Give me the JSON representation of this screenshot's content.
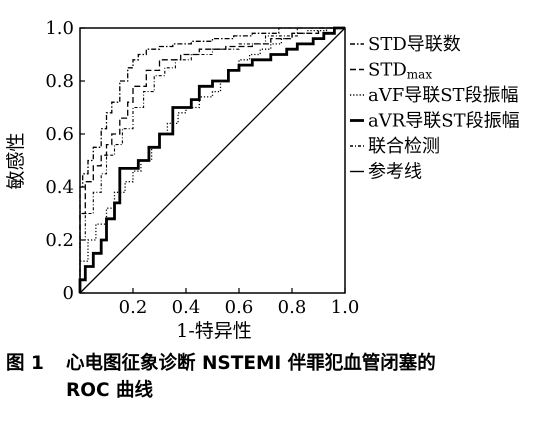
{
  "chart_data": {
    "type": "line",
    "title": "",
    "xlabel": "1-特异性",
    "ylabel": "敏感性",
    "xlim": [
      0,
      1
    ],
    "ylim": [
      0,
      1
    ],
    "x_ticks": [
      "0",
      "0.2",
      "0.4",
      "0.6",
      "0.8",
      "1.0"
    ],
    "y_ticks": [
      "0",
      "0.2",
      "0.4",
      "0.6",
      "0.8",
      "1.0"
    ],
    "grid": false,
    "legend_position": "right",
    "series": [
      {
        "name": "STD导联数",
        "style": "dash-dot",
        "x": [
          0,
          0,
          0.01,
          0.01,
          0.03,
          0.03,
          0.05,
          0.05,
          0.08,
          0.08,
          0.1,
          0.1,
          0.12,
          0.12,
          0.15,
          0.15,
          0.18,
          0.18,
          0.2,
          0.2,
          0.22,
          0.22,
          0.25,
          0.25,
          0.3,
          0.3,
          0.35,
          0.35,
          0.42,
          0.42,
          0.5,
          0.5,
          0.58,
          0.58,
          0.65,
          0.65,
          0.75,
          0.75,
          1.0
        ],
        "y": [
          0,
          0.4,
          0.4,
          0.45,
          0.45,
          0.5,
          0.5,
          0.55,
          0.55,
          0.62,
          0.62,
          0.68,
          0.68,
          0.72,
          0.72,
          0.8,
          0.8,
          0.85,
          0.85,
          0.88,
          0.88,
          0.9,
          0.9,
          0.92,
          0.92,
          0.93,
          0.93,
          0.94,
          0.94,
          0.95,
          0.95,
          0.96,
          0.96,
          0.97,
          0.97,
          0.98,
          0.98,
          1.0,
          1.0
        ]
      },
      {
        "name": "STDmax",
        "style": "dashed",
        "x": [
          0,
          0,
          0.02,
          0.02,
          0.05,
          0.05,
          0.08,
          0.08,
          0.1,
          0.1,
          0.12,
          0.12,
          0.15,
          0.15,
          0.18,
          0.18,
          0.2,
          0.2,
          0.25,
          0.25,
          0.3,
          0.3,
          0.38,
          0.38,
          0.45,
          0.45,
          0.55,
          0.55,
          0.65,
          0.65,
          0.72,
          0.72,
          0.8,
          0.8,
          0.9,
          0.9,
          1.0
        ],
        "y": [
          0,
          0.3,
          0.3,
          0.42,
          0.42,
          0.48,
          0.48,
          0.52,
          0.52,
          0.56,
          0.56,
          0.6,
          0.6,
          0.66,
          0.66,
          0.72,
          0.72,
          0.78,
          0.78,
          0.84,
          0.84,
          0.88,
          0.88,
          0.9,
          0.9,
          0.92,
          0.92,
          0.93,
          0.93,
          0.94,
          0.94,
          0.96,
          0.96,
          0.98,
          0.98,
          1.0,
          1.0
        ]
      },
      {
        "name": "aVF导联ST段振幅",
        "style": "dotted",
        "x": [
          0,
          0,
          0.03,
          0.03,
          0.06,
          0.06,
          0.1,
          0.1,
          0.13,
          0.13,
          0.17,
          0.17,
          0.2,
          0.2,
          0.23,
          0.23,
          0.27,
          0.27,
          0.3,
          0.3,
          0.33,
          0.33,
          0.37,
          0.37,
          0.4,
          0.4,
          0.45,
          0.45,
          0.5,
          0.5,
          0.53,
          0.53,
          0.56,
          0.56,
          0.6,
          0.6,
          0.64,
          0.64,
          0.68,
          0.68,
          0.72,
          0.72,
          0.76,
          0.76,
          0.8,
          0.8,
          0.86,
          0.86,
          0.93,
          0.93,
          1.0
        ],
        "y": [
          0,
          0.12,
          0.12,
          0.2,
          0.2,
          0.26,
          0.26,
          0.32,
          0.32,
          0.38,
          0.38,
          0.42,
          0.42,
          0.46,
          0.46,
          0.5,
          0.5,
          0.55,
          0.55,
          0.6,
          0.6,
          0.64,
          0.64,
          0.68,
          0.68,
          0.7,
          0.7,
          0.74,
          0.74,
          0.76,
          0.76,
          0.8,
          0.8,
          0.84,
          0.84,
          0.88,
          0.88,
          0.9,
          0.9,
          0.92,
          0.92,
          0.94,
          0.94,
          0.96,
          0.96,
          0.98,
          0.98,
          0.99,
          0.99,
          1.0,
          1.0
        ]
      },
      {
        "name": "aVR导联ST段振幅",
        "style": "solid-bold",
        "x": [
          0,
          0,
          0.02,
          0.02,
          0.05,
          0.05,
          0.08,
          0.08,
          0.1,
          0.1,
          0.13,
          0.13,
          0.15,
          0.15,
          0.18,
          0.18,
          0.22,
          0.22,
          0.26,
          0.26,
          0.3,
          0.3,
          0.35,
          0.35,
          0.42,
          0.42,
          0.45,
          0.45,
          0.5,
          0.5,
          0.56,
          0.56,
          0.6,
          0.6,
          0.65,
          0.65,
          0.72,
          0.72,
          0.78,
          0.78,
          0.82,
          0.82,
          0.88,
          0.88,
          0.92,
          0.92,
          0.96,
          0.96,
          1.0
        ],
        "y": [
          0,
          0.05,
          0.05,
          0.1,
          0.1,
          0.15,
          0.15,
          0.2,
          0.2,
          0.28,
          0.28,
          0.34,
          0.34,
          0.47,
          0.47,
          0.47,
          0.47,
          0.5,
          0.5,
          0.55,
          0.55,
          0.6,
          0.6,
          0.7,
          0.7,
          0.73,
          0.73,
          0.78,
          0.78,
          0.8,
          0.8,
          0.84,
          0.84,
          0.86,
          0.86,
          0.88,
          0.88,
          0.9,
          0.9,
          0.92,
          0.92,
          0.94,
          0.94,
          0.96,
          0.96,
          0.98,
          0.98,
          1.0,
          1.0
        ]
      },
      {
        "name": "联合检测",
        "style": "dash-dot-fine",
        "x": [
          0,
          0,
          0.02,
          0.02,
          0.05,
          0.05,
          0.08,
          0.08,
          0.1,
          0.1,
          0.13,
          0.13,
          0.16,
          0.16,
          0.2,
          0.2,
          0.24,
          0.24,
          0.28,
          0.28,
          0.32,
          0.32,
          0.36,
          0.36,
          0.42,
          0.42,
          0.5,
          0.5,
          0.6,
          0.6,
          0.7,
          0.7,
          0.82,
          0.82,
          1.0
        ],
        "y": [
          0,
          0.2,
          0.2,
          0.3,
          0.3,
          0.38,
          0.38,
          0.45,
          0.45,
          0.52,
          0.52,
          0.56,
          0.56,
          0.62,
          0.62,
          0.7,
          0.7,
          0.76,
          0.76,
          0.82,
          0.82,
          0.85,
          0.85,
          0.88,
          0.88,
          0.9,
          0.9,
          0.92,
          0.92,
          0.94,
          0.94,
          0.97,
          0.97,
          1.0,
          1.0
        ]
      },
      {
        "name": "参考线",
        "style": "solid",
        "x": [
          0,
          1
        ],
        "y": [
          0,
          1
        ]
      }
    ]
  },
  "legend": {
    "items": [
      {
        "text": "STD导联数",
        "sub": ""
      },
      {
        "text": "STD",
        "sub": "max"
      },
      {
        "text": "aVF导联ST段振幅",
        "sub": ""
      },
      {
        "text": "aVR导联ST段振幅",
        "sub": ""
      },
      {
        "text": "联合检测",
        "sub": ""
      },
      {
        "text": "参考线",
        "sub": ""
      }
    ]
  },
  "caption": {
    "label": "图 1",
    "line1": "心电图征象诊断 NSTEMI 伴罪犯血管闭塞的",
    "line2": "ROC 曲线"
  }
}
